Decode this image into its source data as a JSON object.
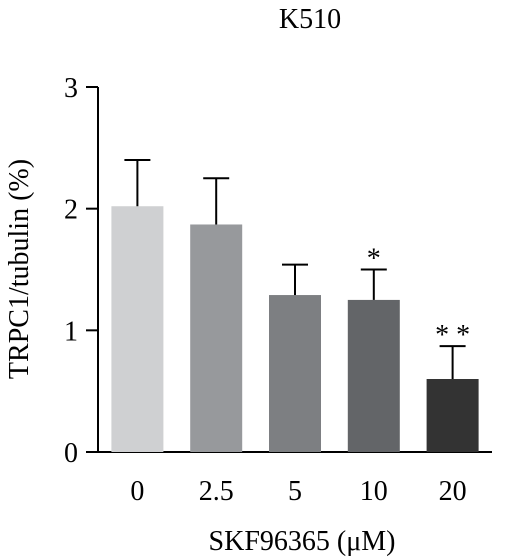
{
  "chart_data": {
    "type": "bar",
    "title": "K510",
    "xlabel": "SKF96365 (μM)",
    "ylabel": "TRPC1/tubulin (%)",
    "categories": [
      "0",
      "2.5",
      "5",
      "10",
      "20"
    ],
    "values": [
      2.02,
      1.87,
      1.29,
      1.25,
      0.6
    ],
    "error_upper": [
      0.38,
      0.38,
      0.25,
      0.25,
      0.27
    ],
    "significance": [
      "",
      "",
      "",
      "*",
      "* *"
    ],
    "bar_colors": [
      "#cfd0d2",
      "#97999c",
      "#7d7f82",
      "#636568",
      "#333333"
    ],
    "ylim": [
      0,
      3
    ],
    "yticks": [
      "0",
      "1",
      "2",
      "3"
    ],
    "grid": false,
    "legend": "none"
  }
}
